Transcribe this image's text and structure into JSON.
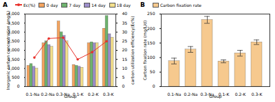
{
  "chart_data": [
    {
      "type": "bar",
      "title": "A",
      "x_label": "Group",
      "y_label": "Inorganic carbon concentration (mg/L)",
      "y2_label": "carbon utilization efficiency(Ec%)",
      "categories": [
        "0.1-Na",
        "0.2-Na",
        "0.3-Na",
        "0.1-K",
        "0.2-K",
        "0.3-K"
      ],
      "series": [
        {
          "name": "0 day",
          "color": "#f4a460",
          "values": [
            1150,
            2400,
            3600,
            1200,
            2400,
            3200
          ]
        },
        {
          "name": "7 day",
          "color": "#6fb36f",
          "values": [
            1250,
            2500,
            3000,
            1150,
            2450,
            3900
          ]
        },
        {
          "name": "14 day",
          "color": "#9d8fcb",
          "values": [
            1100,
            2300,
            2800,
            1100,
            2400,
            2900
          ]
        },
        {
          "name": "18 day",
          "color": "#f3df8c",
          "values": [
            1000,
            2200,
            2500,
            1050,
            2400,
            2700
          ]
        },
        {
          "name": "Ec(%)",
          "type": "line",
          "axis": "y2",
          "color": "#e8302a",
          "marker": "circle",
          "values": [
            16,
            26.5,
            27,
            15,
            19,
            25
          ]
        }
      ],
      "ylim": [
        0,
        4000
      ],
      "yticks": [
        0,
        500,
        1000,
        1500,
        2000,
        2500,
        3000,
        3500,
        4000
      ],
      "y2lim": [
        0,
        40
      ],
      "y2ticks": [
        0,
        5,
        10,
        15,
        20,
        25,
        30,
        35,
        40
      ],
      "legend": "top"
    },
    {
      "type": "bar",
      "title": "B",
      "x_label": "Group",
      "y_label": "Carbon fixation rate (mg/L/d)",
      "categories": [
        "0.1-Na",
        "0.2-Na",
        "0.3-Na",
        "0.1-K",
        "0.2-K",
        "0.3-K"
      ],
      "series": [
        {
          "name": "Carbon fixation rate",
          "color": "#f6c98e",
          "values": [
            88,
            128,
            230,
            87,
            115,
            153
          ],
          "errors": [
            10,
            10,
            12,
            5,
            10,
            8
          ]
        }
      ],
      "ylim": [
        0,
        250
      ],
      "yticks": [
        0,
        50,
        100,
        150,
        200,
        250
      ],
      "legend": "top"
    }
  ]
}
